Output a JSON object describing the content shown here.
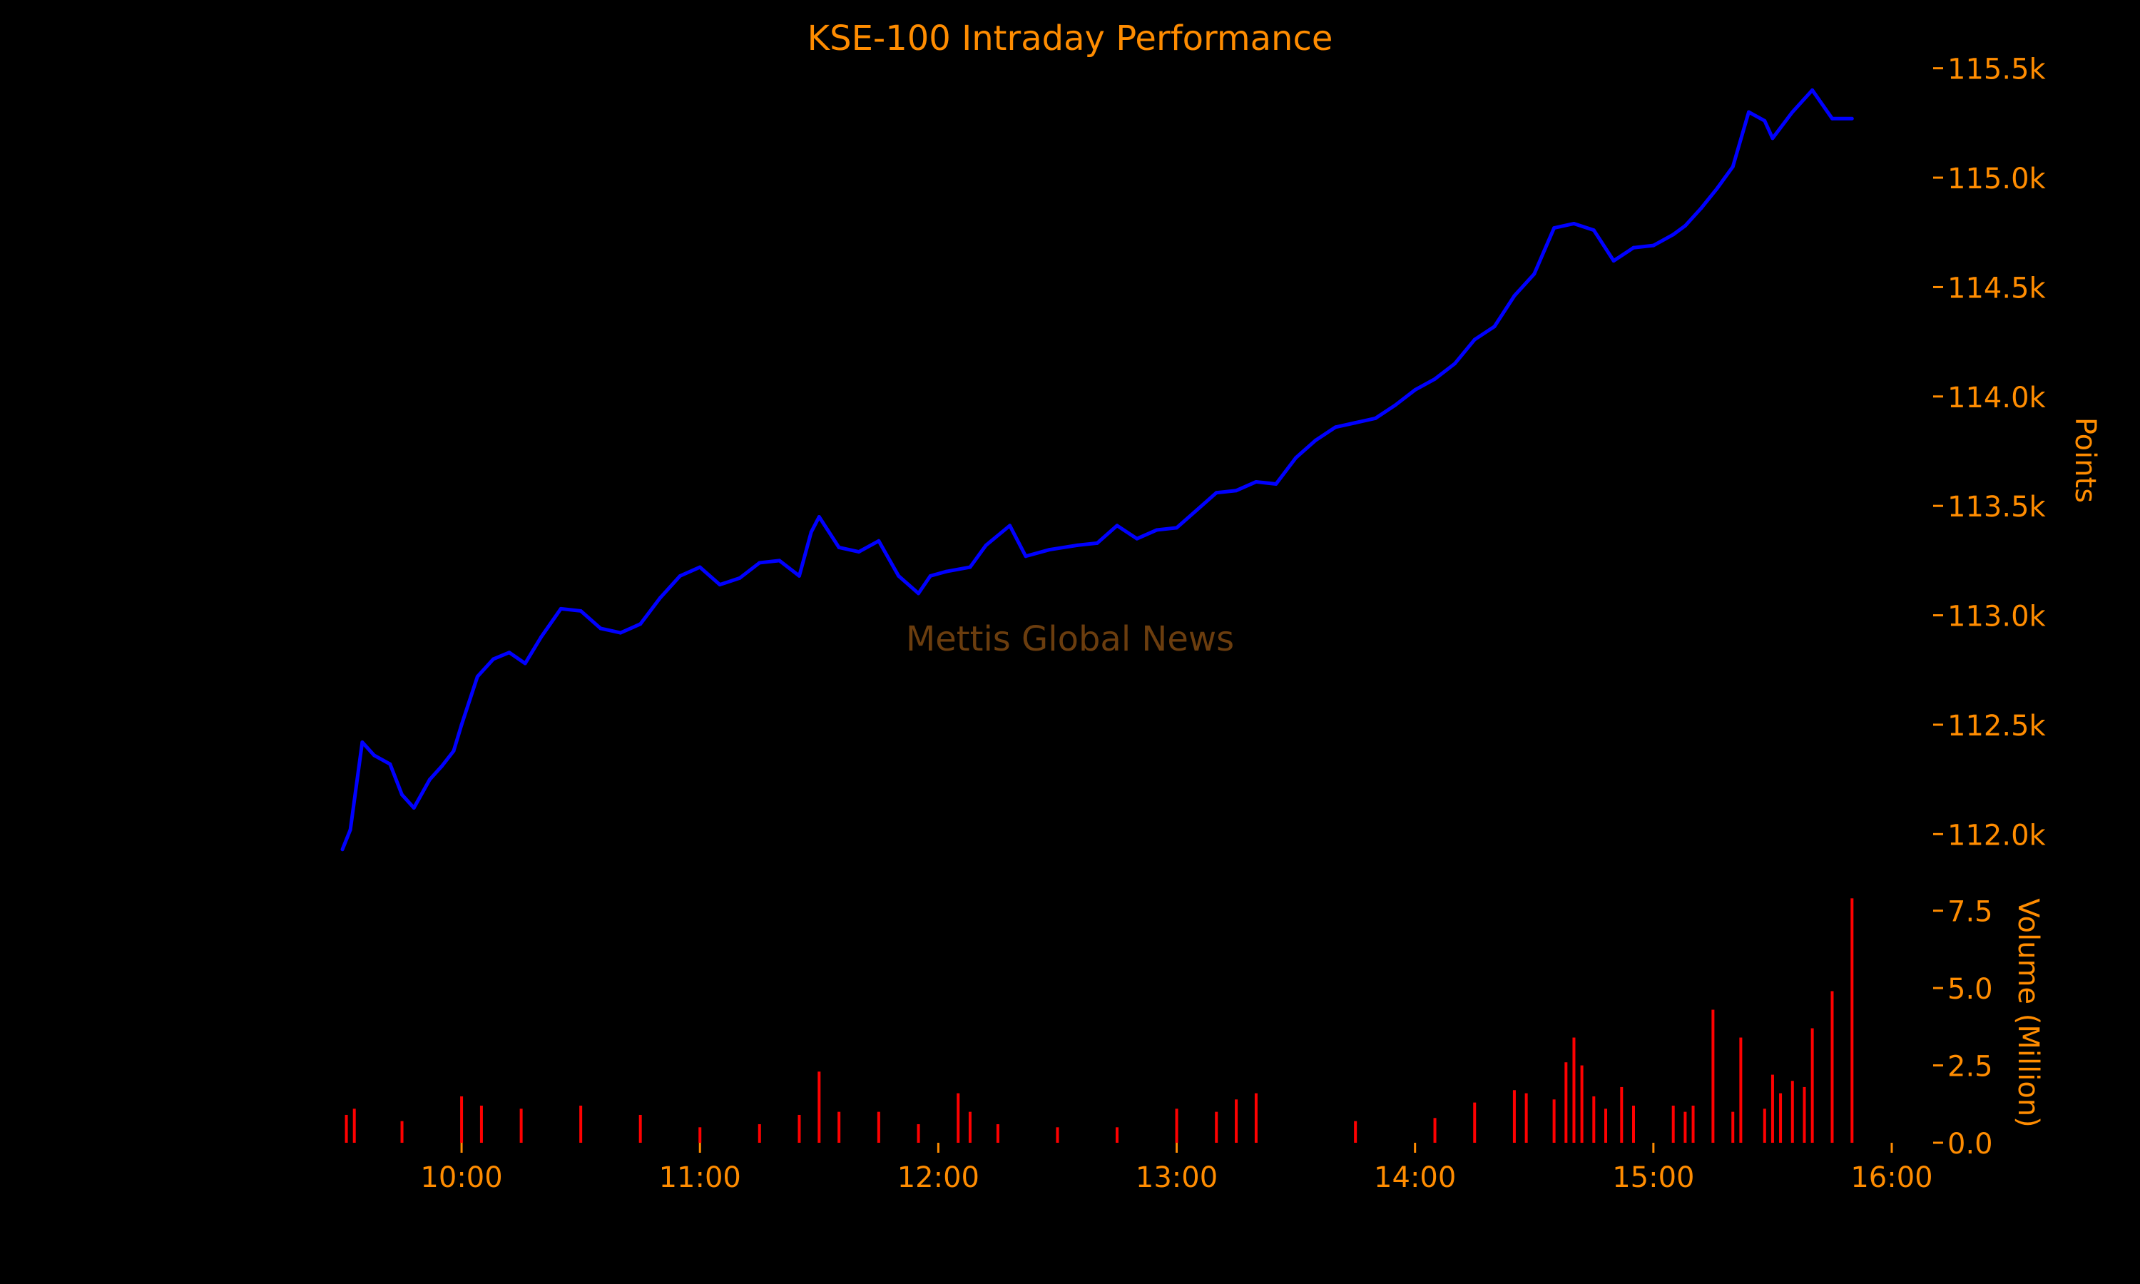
{
  "colors": {
    "background": "#000000",
    "text": "#ff8c00",
    "price_line": "#0000ff",
    "volume_bars": "#ff0000",
    "watermark": "#6b3d0e"
  },
  "watermark": "Mettis Global News",
  "chart_data": [
    {
      "type": "line",
      "title": "KSE-100 Intraday Performance",
      "ylabel": "Points",
      "ylim": [
        111900,
        115600
      ],
      "ytick_values": [
        112000,
        112500,
        113000,
        113500,
        114000,
        114500,
        115000,
        115500
      ],
      "ytick_labels": [
        "112.0k",
        "112.5k",
        "113.0k",
        "113.5k",
        "114.0k",
        "114.5k",
        "115.0k",
        "115.5k"
      ],
      "grid": false,
      "x": [
        "09:30",
        "09:32",
        "09:35",
        "09:38",
        "09:42",
        "09:45",
        "09:48",
        "09:52",
        "09:55",
        "09:58",
        "10:00",
        "10:04",
        "10:08",
        "10:12",
        "10:16",
        "10:20",
        "10:25",
        "10:30",
        "10:35",
        "10:40",
        "10:45",
        "10:50",
        "10:55",
        "11:00",
        "11:05",
        "11:10",
        "11:15",
        "11:20",
        "11:25",
        "11:28",
        "11:30",
        "11:35",
        "11:40",
        "11:45",
        "11:50",
        "11:55",
        "11:58",
        "12:02",
        "12:08",
        "12:12",
        "12:18",
        "12:22",
        "12:28",
        "12:35",
        "12:40",
        "12:45",
        "12:50",
        "12:55",
        "13:00",
        "13:05",
        "13:10",
        "13:15",
        "13:20",
        "13:25",
        "13:30",
        "13:35",
        "13:40",
        "13:45",
        "13:50",
        "13:55",
        "14:00",
        "14:05",
        "14:10",
        "14:15",
        "14:20",
        "14:25",
        "14:30",
        "14:35",
        "14:40",
        "14:45",
        "14:50",
        "14:55",
        "15:00",
        "15:05",
        "15:08",
        "15:12",
        "15:16",
        "15:20",
        "15:24",
        "15:28",
        "15:30",
        "15:35",
        "15:40",
        "15:45",
        "15:50"
      ],
      "values": [
        111930,
        112020,
        112420,
        112360,
        112320,
        112180,
        112120,
        112250,
        112310,
        112380,
        112500,
        112720,
        112800,
        112830,
        112780,
        112900,
        113030,
        113020,
        112940,
        112920,
        112960,
        113080,
        113180,
        113220,
        113140,
        113170,
        113240,
        113250,
        113180,
        113380,
        113450,
        113310,
        113290,
        113340,
        113180,
        113100,
        113180,
        113200,
        113220,
        113320,
        113410,
        113270,
        113300,
        113320,
        113330,
        113410,
        113350,
        113390,
        113400,
        113480,
        113560,
        113570,
        113610,
        113600,
        113720,
        113800,
        113860,
        113880,
        113900,
        113960,
        114030,
        114080,
        114150,
        114260,
        114320,
        114460,
        114560,
        114770,
        114790,
        114760,
        114620,
        114680,
        114690,
        114740,
        114780,
        114860,
        114950,
        115050,
        115300,
        115260,
        115180,
        115300,
        115400,
        115270,
        115270
      ]
    },
    {
      "type": "bar",
      "ylabel": "Volume (Million)",
      "ylim": [
        0,
        8.0
      ],
      "ytick_values": [
        0,
        2.5,
        5.0,
        7.5
      ],
      "ytick_labels": [
        "0.0",
        "2.5",
        "5.0",
        "7.5"
      ],
      "xlim": [
        "09:30",
        "16:00"
      ],
      "xtick_values": [
        "10:00",
        "11:00",
        "12:00",
        "13:00",
        "14:00",
        "15:00",
        "16:00"
      ],
      "xtick_labels": [
        "10:00",
        "11:00",
        "12:00",
        "13:00",
        "14:00",
        "15:00",
        "16:00"
      ],
      "x": [
        "09:31",
        "09:33",
        "09:45",
        "10:00",
        "10:05",
        "10:15",
        "10:30",
        "10:45",
        "11:00",
        "11:15",
        "11:25",
        "11:30",
        "11:35",
        "11:45",
        "11:55",
        "12:05",
        "12:08",
        "12:15",
        "12:30",
        "12:45",
        "13:00",
        "13:10",
        "13:15",
        "13:20",
        "13:45",
        "14:05",
        "14:15",
        "14:25",
        "14:28",
        "14:35",
        "14:38",
        "14:40",
        "14:42",
        "14:45",
        "14:48",
        "14:52",
        "14:55",
        "15:05",
        "15:08",
        "15:10",
        "15:15",
        "15:20",
        "15:22",
        "15:28",
        "15:30",
        "15:32",
        "15:35",
        "15:38",
        "15:40",
        "15:45",
        "15:50"
      ],
      "values": [
        0.9,
        1.1,
        0.7,
        1.5,
        1.2,
        1.1,
        1.2,
        0.9,
        0.5,
        0.6,
        0.9,
        2.3,
        1.0,
        1.0,
        0.6,
        1.6,
        1.0,
        0.6,
        0.5,
        0.5,
        1.1,
        1.0,
        1.4,
        1.6,
        0.7,
        0.8,
        1.3,
        1.7,
        1.6,
        1.4,
        2.6,
        3.4,
        2.5,
        1.5,
        1.1,
        1.8,
        1.2,
        1.2,
        1.0,
        1.2,
        4.3,
        1.0,
        3.4,
        1.1,
        2.2,
        1.6,
        2.0,
        1.8,
        3.7,
        4.9,
        7.9
      ]
    }
  ]
}
